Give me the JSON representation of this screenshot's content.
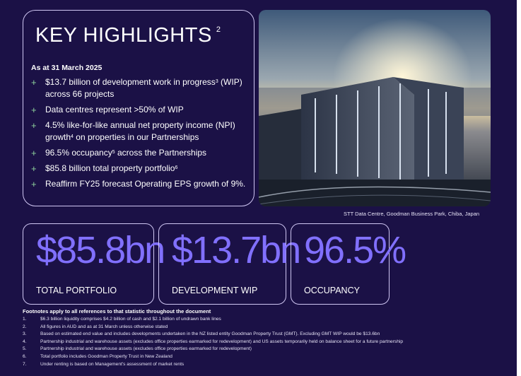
{
  "title": {
    "text": "KEY HIGHLIGHTS",
    "sup": "2"
  },
  "as_at": "As at 31 March 2025",
  "bullets": [
    {
      "pre": "$13.7 billion of development work in progress",
      "sup": "3",
      "post": " (WIP) across 66 projects"
    },
    {
      "pre": "Data centres represent >50% of WIP",
      "sup": "",
      "post": ""
    },
    {
      "pre": "4.5% like-for-like annual net property income (NPI) growth",
      "sup": "4",
      "post": " on properties in our Partnerships"
    },
    {
      "pre": "96.5% occupancy",
      "sup": "5",
      "post": " across the Partnerships"
    },
    {
      "pre": "$85.8 billion total property portfolio",
      "sup": "6",
      "post": ""
    },
    {
      "pre": "Reaffirm FY25 forecast Operating EPS growth of 9%.",
      "sup": "",
      "post": ""
    }
  ],
  "bullet_marker": "+",
  "photo_caption": "STT Data Centre, Goodman Business Park, Chiba, Japan",
  "stats": [
    {
      "value": "$85.8bn",
      "label": "TOTAL PORTFOLIO"
    },
    {
      "value": "$13.7bn",
      "label": "DEVELOPMENT WIP"
    },
    {
      "value": "96.5%",
      "label": "OCCUPANCY"
    }
  ],
  "footnotes_heading": "Footnotes apply to all references to that statistic throughout the document",
  "footnotes": [
    {
      "num": "1.",
      "text": "$6.3 billion liquidity comprises $4.2 billion of cash and $2.1 billion of undrawn bank lines"
    },
    {
      "num": "2.",
      "text": "All figures in AUD and as at 31 March unless otherwise stated"
    },
    {
      "num": "3.",
      "text": "Based on estimated end value and includes developments undertaken in the NZ listed entity Goodman Property Trust (GMT). Excluding GMT WIP would be $13.6bn"
    },
    {
      "num": "4.",
      "text": "Partnership industrial and warehouse assets (excludes office properties earmarked for redevelopment) and US assets temporarily held on balance sheet for a future partnership"
    },
    {
      "num": "5.",
      "text": "Partnership industrial and warehouse assets (excludes office properties earmarked for redevelopment)"
    },
    {
      "num": "6.",
      "text": "Total portfolio includes Goodman Property Trust in New Zealand"
    },
    {
      "num": "7.",
      "text": "Under renting is based on Management's assessment of market rents"
    }
  ],
  "colors": {
    "background": "#1b1146",
    "accent": "#8170ff",
    "plus": "#8fd29c",
    "frame": "#cfc6f2"
  }
}
